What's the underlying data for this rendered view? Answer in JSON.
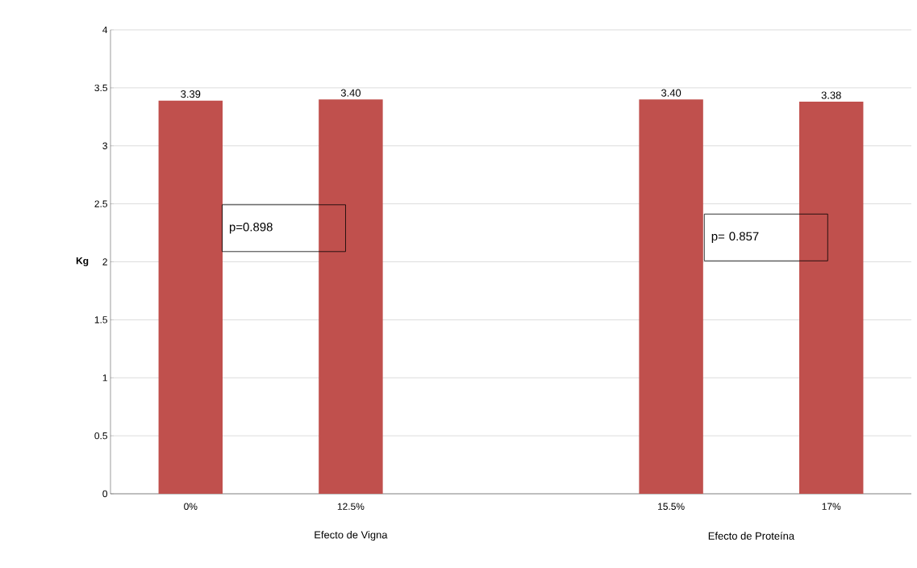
{
  "chart_data": {
    "type": "bar",
    "ylabel": "Kg",
    "categories": [
      "0%",
      "12.5%",
      null,
      "15.5%",
      "17%"
    ],
    "values": [
      3.39,
      3.4,
      null,
      3.4,
      3.38
    ],
    "value_labels": [
      "3.39",
      "3.40",
      null,
      "3.40",
      "3.38"
    ],
    "color": "#c0504d",
    "ylim": [
      0,
      4
    ],
    "yticks": [
      0,
      0.5,
      1,
      1.5,
      2,
      2.5,
      3,
      3.5,
      4
    ],
    "grid": "y",
    "annotations": [
      "p=0.898",
      "p= 0.857",
      "Efecto de Vigna",
      "Efecto de Proteína"
    ]
  }
}
